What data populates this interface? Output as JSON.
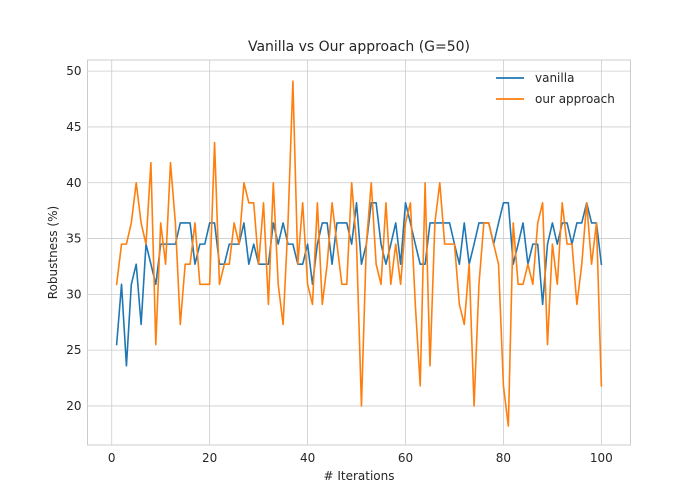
{
  "chart_data": {
    "type": "line",
    "title": "Vanilla vs Our approach (G=50)",
    "xlabel": "# Iterations",
    "ylabel": "Robustness (%)",
    "xlim": [
      -4.95,
      105.95
    ],
    "ylim": [
      16.5,
      51
    ],
    "xticks": [
      0,
      20,
      40,
      60,
      80,
      100
    ],
    "yticks": [
      20,
      25,
      30,
      35,
      40,
      45,
      50
    ],
    "grid": true,
    "legend_position": "top-right",
    "x": [
      1,
      2,
      3,
      4,
      5,
      6,
      7,
      8,
      9,
      10,
      11,
      12,
      13,
      14,
      15,
      16,
      17,
      18,
      19,
      20,
      21,
      22,
      23,
      24,
      25,
      26,
      27,
      28,
      29,
      30,
      31,
      32,
      33,
      34,
      35,
      36,
      37,
      38,
      39,
      40,
      41,
      42,
      43,
      44,
      45,
      46,
      47,
      48,
      49,
      50,
      51,
      52,
      53,
      54,
      55,
      56,
      57,
      58,
      59,
      60,
      61,
      62,
      63,
      64,
      65,
      66,
      67,
      68,
      69,
      70,
      71,
      72,
      73,
      74,
      75,
      76,
      77,
      78,
      79,
      80,
      81,
      82,
      83,
      84,
      85,
      86,
      87,
      88,
      89,
      90,
      91,
      92,
      93,
      94,
      95,
      96,
      97,
      98,
      99,
      100
    ],
    "series": [
      {
        "name": "vanilla",
        "color": "#1f77b4",
        "values": [
          25.5,
          30.9,
          23.6,
          30.9,
          32.7,
          27.3,
          34.5,
          32.7,
          30.9,
          34.5,
          34.5,
          34.5,
          34.5,
          36.4,
          36.4,
          36.4,
          32.7,
          34.5,
          34.5,
          36.4,
          36.4,
          32.7,
          32.7,
          34.5,
          34.5,
          34.5,
          36.4,
          32.7,
          34.5,
          32.7,
          32.7,
          32.7,
          36.4,
          34.5,
          36.4,
          34.5,
          34.5,
          32.7,
          32.7,
          34.5,
          30.9,
          34.5,
          36.4,
          36.4,
          32.7,
          36.4,
          36.4,
          36.4,
          34.5,
          38.2,
          32.7,
          34.5,
          38.2,
          38.2,
          34.5,
          32.7,
          34.5,
          36.4,
          32.7,
          38.2,
          36.4,
          34.5,
          32.7,
          32.7,
          36.4,
          36.4,
          36.4,
          36.4,
          36.4,
          34.5,
          32.7,
          36.4,
          32.7,
          34.5,
          36.4,
          36.4,
          36.4,
          34.5,
          36.4,
          38.2,
          38.2,
          32.7,
          34.5,
          36.4,
          32.7,
          34.5,
          34.5,
          29.1,
          34.5,
          36.4,
          34.5,
          36.4,
          36.4,
          34.5,
          36.4,
          36.4,
          38.2,
          36.4,
          36.4,
          32.7
        ]
      },
      {
        "name": "our approach",
        "color": "#ff7f0e",
        "values": [
          30.9,
          34.5,
          34.5,
          36.4,
          40.0,
          36.4,
          34.5,
          41.8,
          25.5,
          36.4,
          32.7,
          41.8,
          36.4,
          27.3,
          32.7,
          32.7,
          36.4,
          30.9,
          30.9,
          30.9,
          43.6,
          30.9,
          32.7,
          32.7,
          36.4,
          34.5,
          40.0,
          38.2,
          38.2,
          32.7,
          38.2,
          29.1,
          40.0,
          30.9,
          27.3,
          36.4,
          49.1,
          32.7,
          38.2,
          30.9,
          29.1,
          38.2,
          29.1,
          32.7,
          38.2,
          34.5,
          30.9,
          30.9,
          40.0,
          34.5,
          20.0,
          34.5,
          40.0,
          32.7,
          30.9,
          38.2,
          30.9,
          34.5,
          30.9,
          36.4,
          38.2,
          29.1,
          21.8,
          40.0,
          23.6,
          36.4,
          40.0,
          34.5,
          34.5,
          34.5,
          29.1,
          27.3,
          32.7,
          20.0,
          30.9,
          36.4,
          36.4,
          34.5,
          32.7,
          21.8,
          18.2,
          36.4,
          30.9,
          30.9,
          32.7,
          30.9,
          36.4,
          38.2,
          25.5,
          34.5,
          30.9,
          38.2,
          34.5,
          34.5,
          29.1,
          32.7,
          38.2,
          32.7,
          36.4,
          21.8
        ]
      }
    ]
  }
}
